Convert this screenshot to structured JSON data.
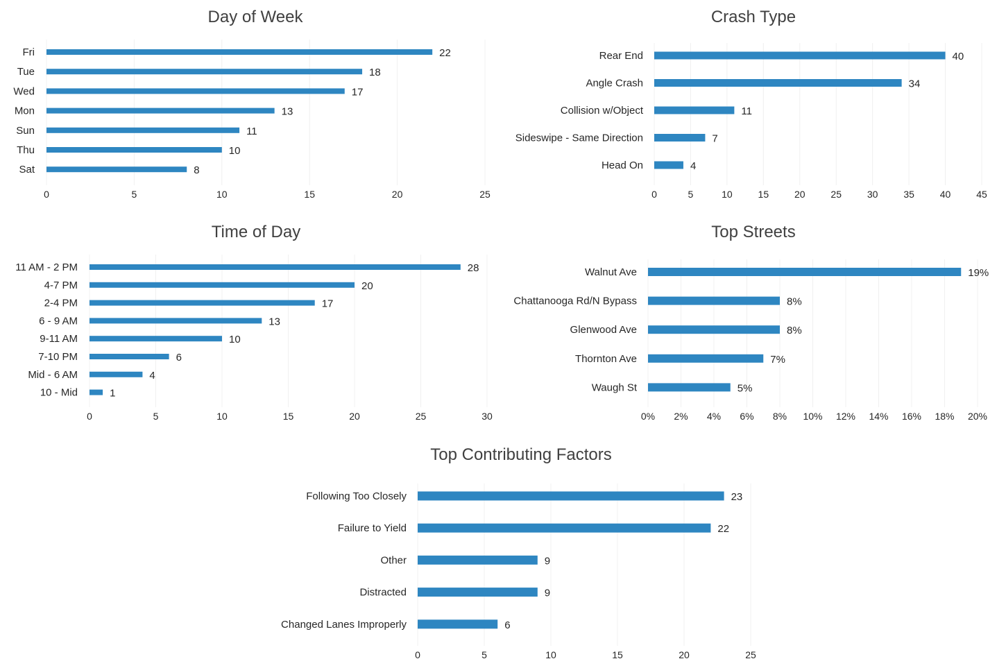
{
  "colors": {
    "bar": "#2e86c1",
    "grid": "#f0f0f0",
    "text": "#262626",
    "title": "#404040"
  },
  "chart_data": [
    {
      "id": "dow",
      "type": "bar",
      "orientation": "horizontal",
      "title": "Day of Week",
      "categories": [
        "Fri",
        "Tue",
        "Wed",
        "Mon",
        "Sun",
        "Thu",
        "Sat"
      ],
      "values": [
        22,
        18,
        17,
        13,
        11,
        10,
        8
      ],
      "data_labels": [
        "22",
        "18",
        "17",
        "13",
        "11",
        "10",
        "8"
      ],
      "xlim": [
        0,
        25
      ],
      "ticks": [
        0,
        5,
        10,
        15,
        20,
        25
      ],
      "tick_labels": [
        "0",
        "5",
        "10",
        "15",
        "20",
        "25"
      ],
      "grid": true
    },
    {
      "id": "ct",
      "type": "bar",
      "orientation": "horizontal",
      "title": "Crash Type",
      "categories": [
        "Rear End",
        "Angle Crash",
        "Collision w/Object",
        "Sideswipe - Same Direction",
        "Head On"
      ],
      "values": [
        40,
        34,
        11,
        7,
        4
      ],
      "data_labels": [
        "40",
        "34",
        "11",
        "7",
        "4"
      ],
      "xlim": [
        0,
        45
      ],
      "ticks": [
        0,
        5,
        10,
        15,
        20,
        25,
        30,
        35,
        40,
        45
      ],
      "tick_labels": [
        "0",
        "5",
        "10",
        "15",
        "20",
        "25",
        "30",
        "35",
        "40",
        "45"
      ],
      "grid": true
    },
    {
      "id": "tod",
      "type": "bar",
      "orientation": "horizontal",
      "title": "Time of Day",
      "categories": [
        "11 AM - 2 PM",
        "4-7 PM",
        "2-4 PM",
        "6 - 9 AM",
        "9-11 AM",
        "7-10 PM",
        "Mid - 6 AM",
        "10 - Mid"
      ],
      "values": [
        28,
        20,
        17,
        13,
        10,
        6,
        4,
        1
      ],
      "data_labels": [
        "28",
        "20",
        "17",
        "13",
        "10",
        "6",
        "4",
        "1"
      ],
      "xlim": [
        0,
        30
      ],
      "ticks": [
        0,
        5,
        10,
        15,
        20,
        25,
        30
      ],
      "tick_labels": [
        "0",
        "5",
        "10",
        "15",
        "20",
        "25",
        "30"
      ],
      "grid": true
    },
    {
      "id": "ts",
      "type": "bar",
      "orientation": "horizontal",
      "title": "Top Streets",
      "categories": [
        "Walnut Ave",
        "Chattanooga Rd/N Bypass",
        "Glenwood Ave",
        "Thornton Ave",
        "Waugh St"
      ],
      "values": [
        19,
        8,
        8,
        7,
        5
      ],
      "data_labels": [
        "19%",
        "8%",
        "8%",
        "7%",
        "5%"
      ],
      "xlim": [
        0,
        20
      ],
      "ticks": [
        0,
        2,
        4,
        6,
        8,
        10,
        12,
        14,
        16,
        18,
        20
      ],
      "tick_labels": [
        "0%",
        "2%",
        "4%",
        "6%",
        "8%",
        "10%",
        "12%",
        "14%",
        "16%",
        "18%",
        "20%"
      ],
      "grid": true
    },
    {
      "id": "tcf",
      "type": "bar",
      "orientation": "horizontal",
      "title": "Top Contributing Factors",
      "categories": [
        "Following Too Closely",
        "Failure to Yield",
        "Other",
        "Distracted",
        "Changed Lanes Improperly"
      ],
      "values": [
        23,
        22,
        9,
        9,
        6
      ],
      "data_labels": [
        "23",
        "22",
        "9",
        "9",
        "6"
      ],
      "xlim": [
        0,
        25
      ],
      "ticks": [
        0,
        5,
        10,
        15,
        20,
        25
      ],
      "tick_labels": [
        "0",
        "5",
        "10",
        "15",
        "20",
        "25"
      ],
      "grid": true
    }
  ]
}
